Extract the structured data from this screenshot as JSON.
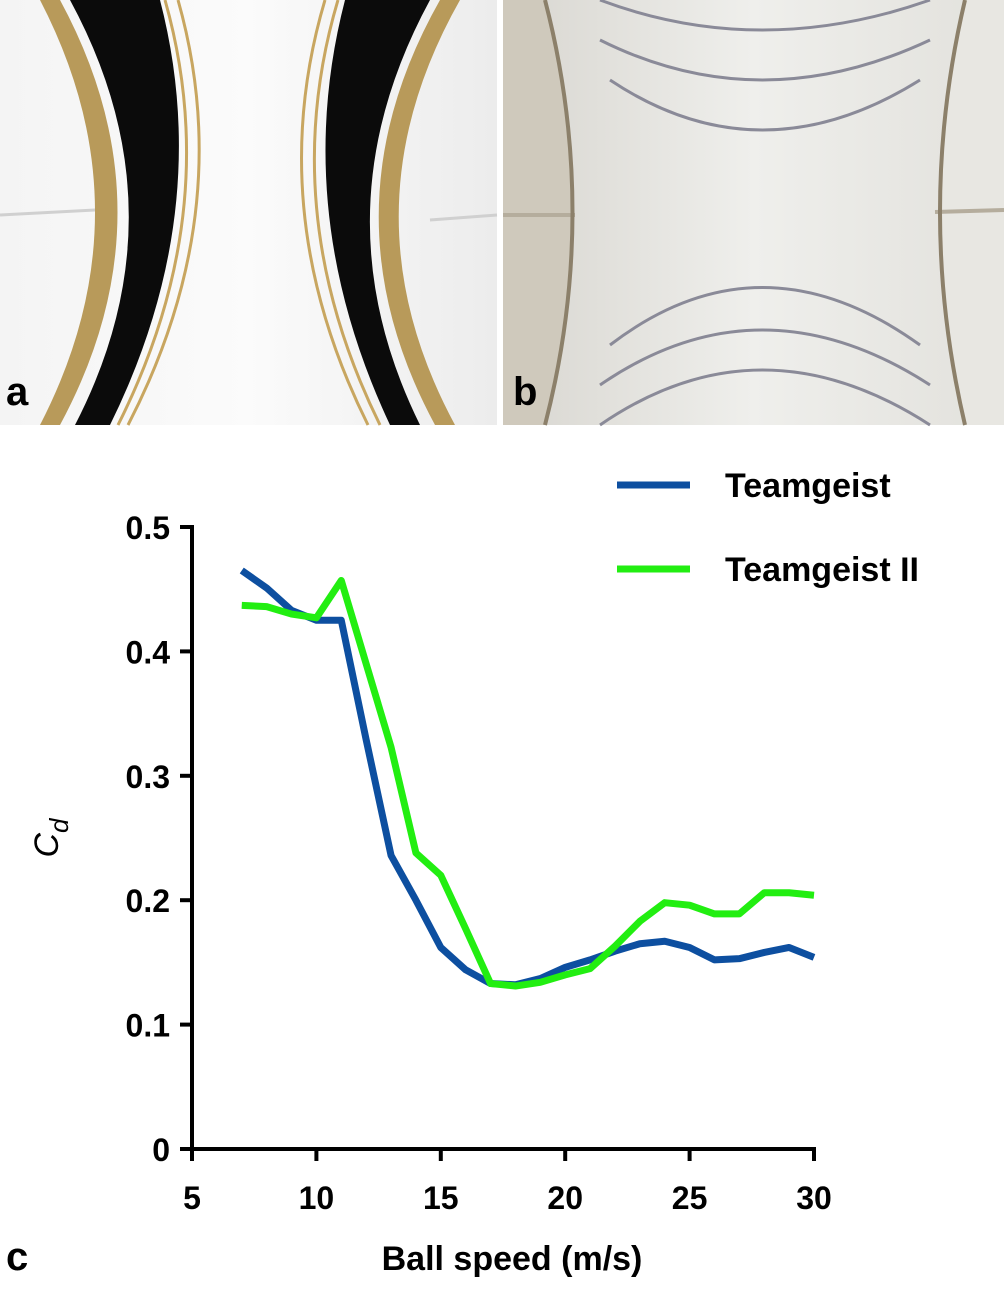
{
  "panel_labels": [
    "a",
    "b",
    "c"
  ],
  "chart_data": {
    "type": "line",
    "xlabel": "Ball speed (m/s)",
    "ylabel": {
      "main": "C",
      "sub": "d"
    },
    "x": [
      7,
      8,
      9,
      10,
      11,
      12,
      13,
      14,
      15,
      16,
      17,
      18,
      19,
      20,
      21,
      22,
      23,
      24,
      25,
      26,
      27,
      28,
      29,
      30
    ],
    "series": [
      {
        "name": "Teamgeist",
        "color": "#0d4fa0",
        "values": [
          0.465,
          0.451,
          0.433,
          0.425,
          0.425,
          0.329,
          0.236,
          0.2,
          0.162,
          0.144,
          0.133,
          0.132,
          0.137,
          0.146,
          0.152,
          0.159,
          0.165,
          0.167,
          0.162,
          0.152,
          0.153,
          0.158,
          0.162,
          0.154
        ]
      },
      {
        "name": "Teamgeist II",
        "color": "#22ee11",
        "values": [
          0.437,
          0.436,
          0.43,
          0.427,
          0.457,
          0.39,
          0.323,
          0.238,
          0.22,
          0.177,
          0.133,
          0.131,
          0.134,
          0.14,
          0.145,
          0.163,
          0.183,
          0.198,
          0.196,
          0.189,
          0.189,
          0.206,
          0.206,
          0.204
        ]
      }
    ],
    "xlim": [
      5,
      30
    ],
    "xticks": [
      5,
      10,
      15,
      20,
      25,
      30
    ],
    "ylim": [
      0,
      0.5
    ],
    "yticks": [
      0,
      0.1,
      0.2,
      0.3,
      0.4,
      0.5
    ],
    "legend": "upper right",
    "grid": false
  }
}
